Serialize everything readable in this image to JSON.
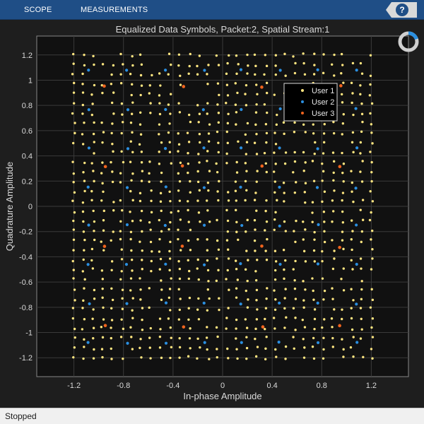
{
  "toolstrip": {
    "tabs": [
      {
        "label": "SCOPE"
      },
      {
        "label": "MEASUREMENTS"
      }
    ],
    "help_icon": "help-icon",
    "help_glyph": "?"
  },
  "status": {
    "text": "Stopped"
  },
  "colors": {
    "background": "#1e1e1e",
    "axes_background": "#111111",
    "toolstrip": "#1f4e86",
    "user1": "#ffe680",
    "user2": "#2b8fe0",
    "user3": "#f0641e"
  },
  "chart_data": {
    "type": "scatter",
    "title": "Equalized Data Symbols, Packet:2, Spatial Stream:1",
    "xlabel": "In-phase Amplitude",
    "ylabel": "Quadrature Amplitude",
    "xlim": [
      -1.5,
      1.5
    ],
    "ylim": [
      -1.35,
      1.35
    ],
    "xticks": [
      -1.2,
      -0.8,
      -0.4,
      0,
      0.4,
      0.8,
      1.2
    ],
    "xtick_labels": [
      "-1.2",
      "-0.8",
      "-0.4",
      "0",
      "0.4",
      "0.8",
      "1.2"
    ],
    "yticks": [
      1.2,
      1,
      0.8,
      0.6,
      0.4,
      0.2,
      0,
      -0.2,
      -0.4,
      -0.6,
      -0.8,
      -1,
      -1.2
    ],
    "ytick_labels": [
      "1.2",
      "1",
      "0.8",
      "0.6",
      "0.4",
      "0.2",
      "0",
      "-0.2",
      "-0.4",
      "-0.6",
      "-0.8",
      "-1",
      "-1.2"
    ],
    "grid": true,
    "legend_position": "top-right",
    "series": [
      {
        "name": "User 1",
        "color": "#ffe680",
        "description": "1024-QAM constellation, 32 levels per axis",
        "levels": [
          -1.2,
          -1.123,
          -1.045,
          -0.968,
          -0.89,
          -0.813,
          -0.735,
          -0.658,
          -0.581,
          -0.503,
          -0.426,
          -0.348,
          -0.271,
          -0.194,
          -0.116,
          -0.039,
          0.039,
          0.116,
          0.194,
          0.271,
          0.348,
          0.426,
          0.503,
          0.581,
          0.658,
          0.735,
          0.813,
          0.89,
          0.968,
          1.045,
          1.123,
          1.2
        ]
      },
      {
        "name": "User 2",
        "color": "#2b8fe0",
        "description": "64-QAM constellation, 8 levels per axis",
        "levels": [
          -1.08,
          -0.77,
          -0.46,
          -0.15,
          0.15,
          0.46,
          0.77,
          1.08
        ]
      },
      {
        "name": "User 3",
        "color": "#f0641e",
        "description": "16-QAM constellation, 4 levels per axis",
        "levels": [
          -0.95,
          -0.32,
          0.32,
          0.95
        ]
      }
    ]
  }
}
